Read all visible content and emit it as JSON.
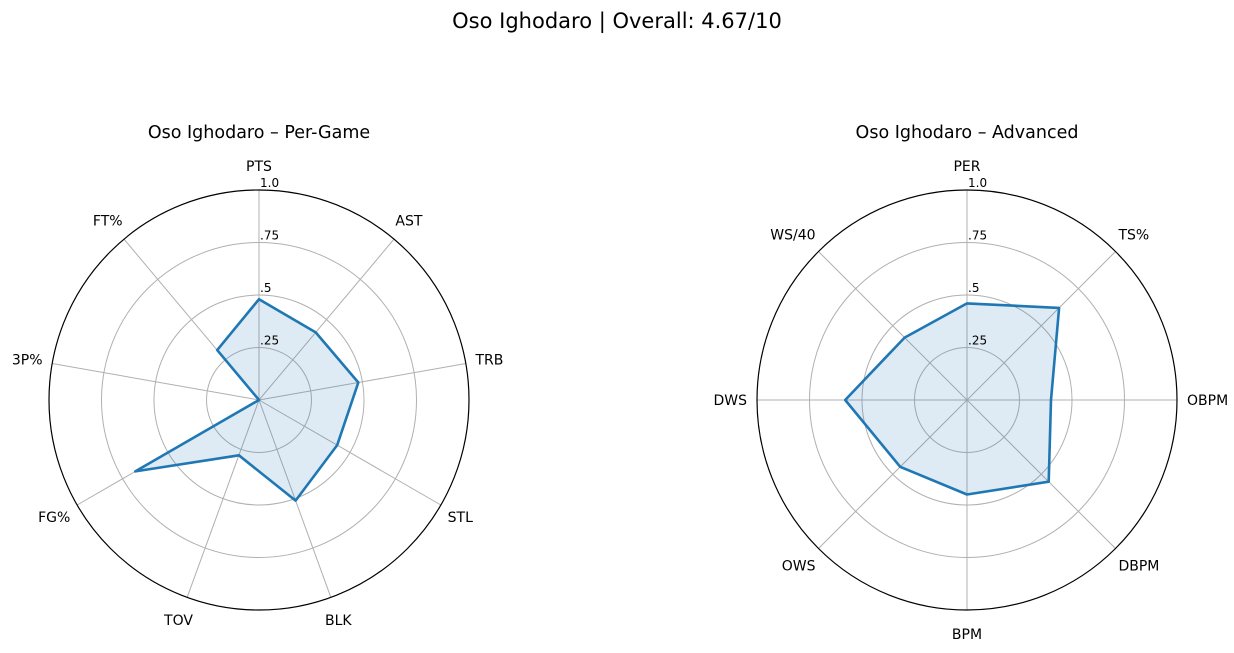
{
  "figure": {
    "title": "Oso Ighodaro | Overall: 4.67/10"
  },
  "colors": {
    "line": "#1f77b4",
    "fill": "#1f77b4",
    "fill_opacity": 0.15,
    "grid": "#b0b0b0",
    "frame": "#000000"
  },
  "chart_data": [
    {
      "type": "radar",
      "title": "Oso Ighodaro – Per-Game",
      "categories": [
        "PTS",
        "AST",
        "TRB",
        "STL",
        "BLK",
        "TOV",
        "FG%",
        "3P%",
        "FT%"
      ],
      "values": [
        0.48,
        0.42,
        0.48,
        0.43,
        0.51,
        0.28,
        0.68,
        0.0,
        0.31
      ],
      "rlim": [
        0,
        1
      ],
      "rticks": [
        0.25,
        0.5,
        0.75,
        1.0
      ],
      "rtick_labels": [
        ".25",
        ".5",
        ".75",
        "1.0"
      ],
      "grid": true
    },
    {
      "type": "radar",
      "title": "Oso Ighodaro – Advanced",
      "categories": [
        "PER",
        "TS%",
        "OBPM",
        "DBPM",
        "BPM",
        "OWS",
        "DWS",
        "WS/40"
      ],
      "values": [
        0.46,
        0.62,
        0.4,
        0.55,
        0.45,
        0.45,
        0.58,
        0.42
      ],
      "rlim": [
        0,
        1
      ],
      "rticks": [
        0.25,
        0.5,
        0.75,
        1.0
      ],
      "rtick_labels": [
        ".25",
        ".5",
        ".75",
        "1.0"
      ],
      "grid": true
    }
  ]
}
